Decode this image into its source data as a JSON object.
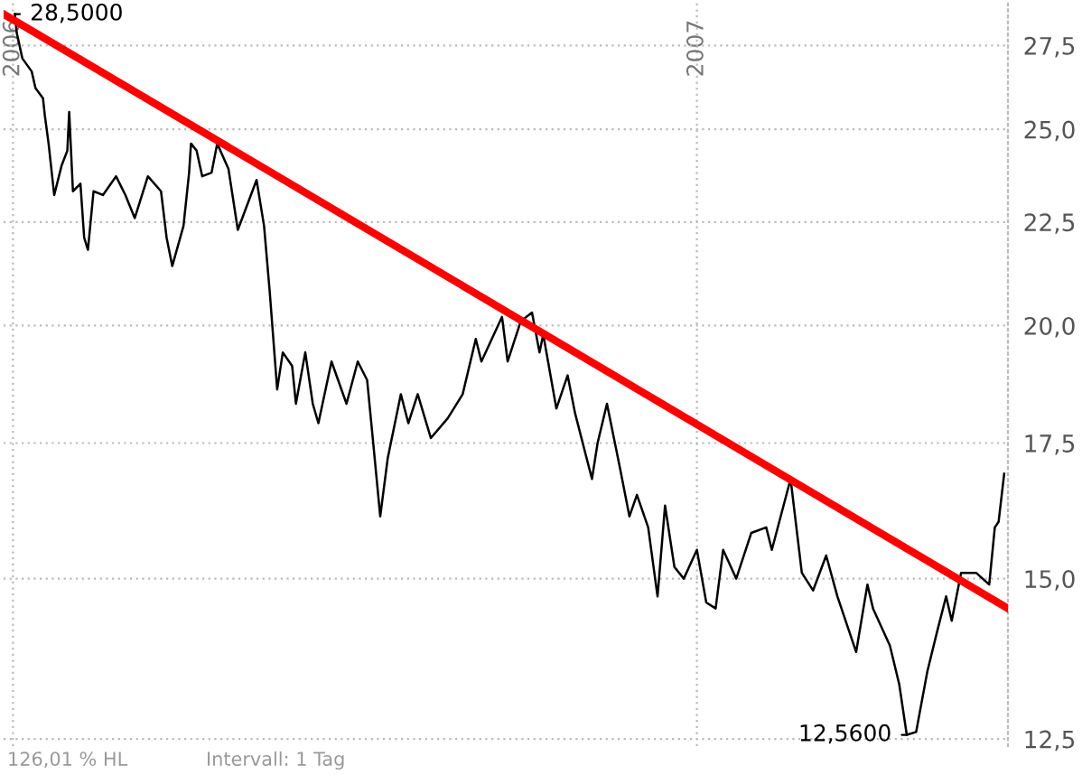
{
  "chart_data": {
    "type": "line",
    "log": true,
    "grid": true,
    "xlim": [
      "2005-12-27",
      "2007-06-16"
    ],
    "xticks": [
      {
        "value": "2006-01-01",
        "label": "2006"
      },
      {
        "value": "2007-01-01",
        "label": "2007"
      }
    ],
    "ylim": [
      12.4,
      28.9
    ],
    "yticks": [
      {
        "value": 12.5,
        "label": "12,5"
      },
      {
        "value": 15,
        "label": "15,0"
      },
      {
        "value": 17.5,
        "label": "17,5"
      },
      {
        "value": 20,
        "label": "20,0"
      },
      {
        "value": 22.5,
        "label": "22,5"
      },
      {
        "value": 25,
        "label": "25,0"
      },
      {
        "value": 27.5,
        "label": "27,5"
      }
    ],
    "series": [
      {
        "color": "#000000",
        "x": [
          "2006-01-02",
          "2006-01-03",
          "2006-01-06",
          "2006-01-11",
          "2006-01-13",
          "2006-01-17",
          "2006-01-18",
          "2006-01-20",
          "2006-01-23",
          "2006-01-27",
          "2006-01-30",
          "2006-01-31",
          "2006-02-02",
          "2006-02-06",
          "2006-02-08",
          "2006-02-10",
          "2006-02-13",
          "2006-02-18",
          "2006-02-25",
          "2006-03-02",
          "2006-03-07",
          "2006-03-14",
          "2006-03-21",
          "2006-03-24",
          "2006-03-27",
          "2006-04-02",
          "2006-04-05",
          "2006-04-06",
          "2006-04-09",
          "2006-04-12",
          "2006-04-17",
          "2006-04-20",
          "2006-04-26",
          "2006-05-01",
          "2006-05-11",
          "2006-05-15",
          "2006-05-18",
          "2006-05-22",
          "2006-05-25",
          "2006-05-30",
          "2006-06-01",
          "2006-06-06",
          "2006-06-10",
          "2006-06-13",
          "2006-06-20",
          "2006-06-28",
          "2006-07-04",
          "2006-07-09",
          "2006-07-12",
          "2006-07-16",
          "2006-07-20",
          "2006-07-27",
          "2006-07-31",
          "2006-08-05",
          "2006-08-12",
          "2006-08-21",
          "2006-08-29",
          "2006-09-05",
          "2006-09-08",
          "2006-09-19",
          "2006-09-22",
          "2006-09-29",
          "2006-10-05",
          "2006-10-09",
          "2006-10-11",
          "2006-10-18",
          "2006-10-24",
          "2006-10-28",
          "2006-11-06",
          "2006-11-09",
          "2006-11-14",
          "2006-11-21",
          "2006-11-26",
          "2006-11-30",
          "2006-12-06",
          "2006-12-11",
          "2006-12-15",
          "2006-12-20",
          "2006-12-25",
          "2007-01-01",
          "2007-01-06",
          "2007-01-11",
          "2007-01-15",
          "2007-01-22",
          "2007-01-30",
          "2007-02-07",
          "2007-02-10",
          "2007-02-20",
          "2007-02-26",
          "2007-03-04",
          "2007-03-11",
          "2007-03-17",
          "2007-03-27",
          "2007-04-02",
          "2007-04-05",
          "2007-04-14",
          "2007-04-19",
          "2007-04-23",
          "2007-04-28",
          "2007-05-04",
          "2007-05-09",
          "2007-05-14",
          "2007-05-17",
          "2007-05-22",
          "2007-05-30",
          "2007-06-06",
          "2007-06-09",
          "2007-06-11",
          "2007-06-14"
        ],
        "values": [
          28.5,
          27.9,
          27.1,
          26.7,
          26.2,
          25.9,
          25.4,
          24.6,
          23.2,
          24.0,
          24.4,
          25.5,
          23.3,
          23.5,
          22.1,
          21.8,
          23.3,
          23.2,
          23.7,
          23.2,
          22.6,
          23.7,
          23.3,
          22.1,
          21.4,
          22.4,
          23.8,
          24.6,
          24.4,
          23.7,
          23.8,
          24.6,
          23.9,
          22.3,
          23.6,
          22.4,
          20.8,
          18.6,
          19.4,
          19.1,
          18.3,
          19.4,
          18.3,
          17.9,
          19.2,
          18.3,
          19.2,
          18.8,
          17.6,
          16.1,
          17.2,
          18.5,
          17.9,
          18.5,
          17.6,
          18.0,
          18.5,
          19.7,
          19.2,
          20.2,
          19.2,
          20.1,
          20.3,
          19.4,
          19.8,
          18.2,
          18.9,
          18.1,
          16.8,
          17.5,
          18.3,
          17.0,
          16.1,
          16.5,
          15.9,
          14.7,
          16.3,
          15.2,
          15.0,
          15.5,
          14.6,
          14.5,
          15.5,
          15.0,
          15.8,
          15.9,
          15.5,
          16.8,
          15.1,
          14.8,
          15.4,
          14.7,
          13.8,
          14.9,
          14.5,
          13.9,
          13.3,
          12.56,
          12.6,
          13.5,
          14.1,
          14.7,
          14.3,
          15.1,
          15.1,
          14.9,
          15.9,
          16.0,
          16.9
        ]
      },
      {
        "type": "line",
        "color": "#ff0000",
        "x": [
          "2005-12-27",
          "2007-06-16"
        ],
        "values": [
          28.5,
          14.5
        ]
      }
    ],
    "annotations": [
      {
        "text": "28,5000",
        "x": "2006-01-02",
        "y": 28.5
      },
      {
        "text": "12,5600",
        "x": "2007-04-23",
        "y": 12.56
      },
      "126,01 % HL",
      "Intervall: 1 Tag"
    ]
  }
}
